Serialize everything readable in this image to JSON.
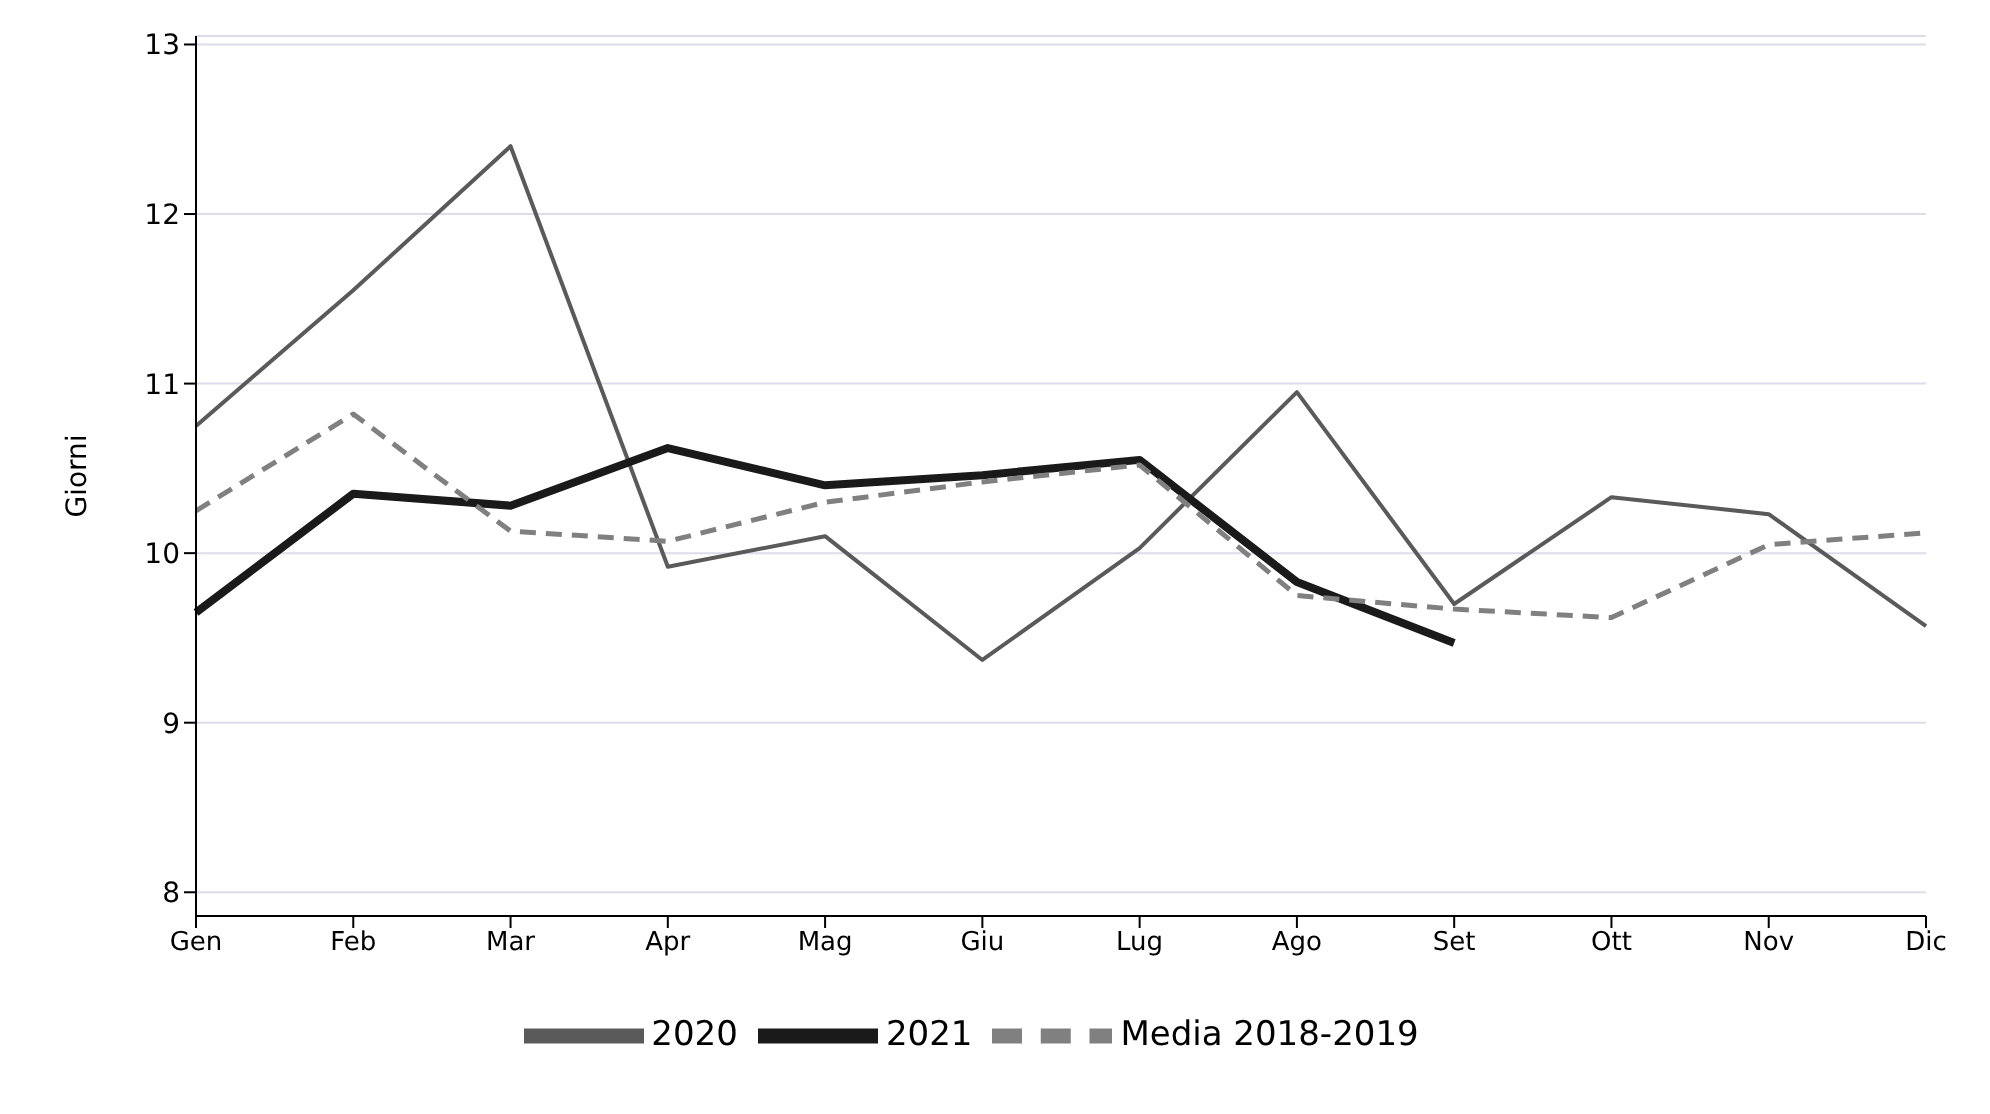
{
  "chart_data": {
    "type": "line",
    "ylabel": "Giorni",
    "categories": [
      "Gen",
      "Feb",
      "Mar",
      "Apr",
      "Mag",
      "Giu",
      "Lug",
      "Ago",
      "Set",
      "Ott",
      "Nov",
      "Dic"
    ],
    "series": [
      {
        "name": "2020",
        "color": "#5a5a5a",
        "line_style": "solid",
        "values": [
          10.75,
          11.55,
          12.4,
          9.92,
          10.1,
          9.37,
          10.03,
          10.95,
          9.7,
          10.33,
          10.23,
          9.57
        ]
      },
      {
        "name": "2021",
        "color": "#1a1a1a",
        "line_style": "solid",
        "values": [
          9.65,
          10.35,
          10.28,
          10.62,
          10.4,
          10.46,
          10.55,
          9.83,
          9.47,
          null,
          null,
          null
        ]
      },
      {
        "name": "Media 2018-2019",
        "color": "#808080",
        "line_style": "dashed",
        "values": [
          10.25,
          10.82,
          10.13,
          10.07,
          10.3,
          10.42,
          10.52,
          9.75,
          9.67,
          9.62,
          10.05,
          10.12
        ]
      }
    ],
    "ylim": [
      7.86,
      13.05
    ],
    "yticks": [
      8,
      9,
      10,
      11,
      12,
      13
    ],
    "grid": "y",
    "legend": "bottom",
    "marker": "none"
  }
}
